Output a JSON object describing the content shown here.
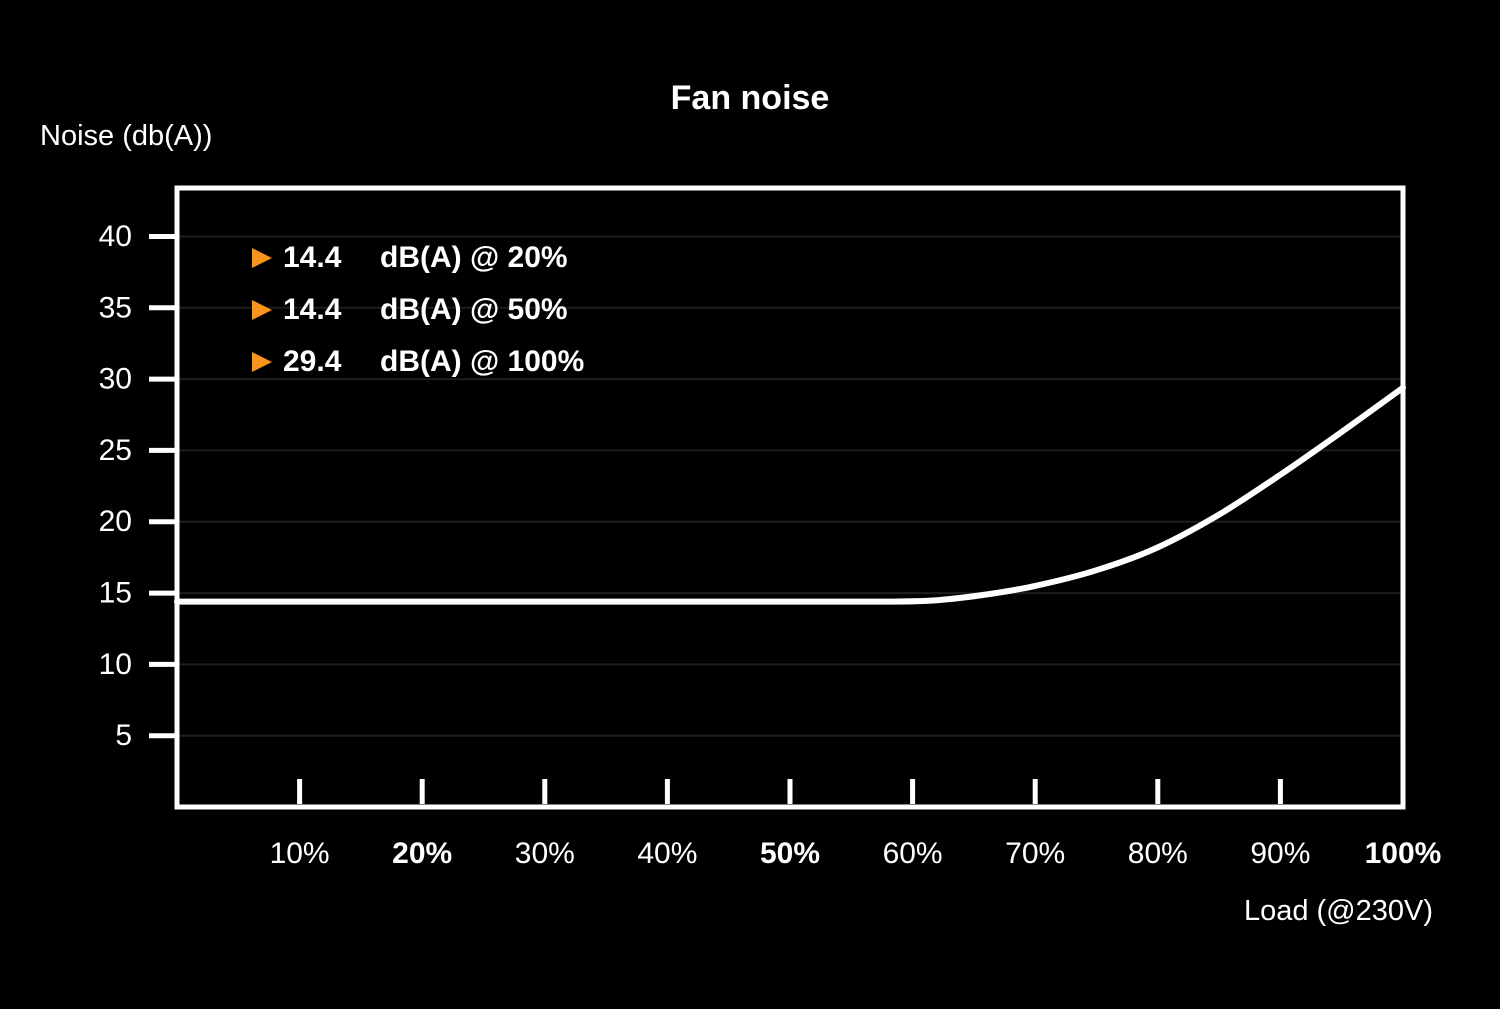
{
  "chart_data": {
    "type": "line",
    "title": "Fan noise",
    "ylabel": "Noise (db(A))",
    "xlabel": "Load (@230V)",
    "x_range": [
      0,
      100
    ],
    "y_range": [
      0,
      43.4
    ],
    "grid": "horizontal-only",
    "legend_position": "top-left-inside",
    "y_ticks": [
      {
        "value": 40,
        "label": "40"
      },
      {
        "value": 35,
        "label": "35"
      },
      {
        "value": 30,
        "label": "30"
      },
      {
        "value": 25,
        "label": "25"
      },
      {
        "value": 20,
        "label": "20"
      },
      {
        "value": 15,
        "label": "15"
      },
      {
        "value": 10,
        "label": "10"
      },
      {
        "value": 5,
        "label": "5"
      }
    ],
    "x_ticks": [
      {
        "value": 10,
        "label": "10%",
        "bold": false,
        "mark": true
      },
      {
        "value": 20,
        "label": "20%",
        "bold": true,
        "mark": true
      },
      {
        "value": 30,
        "label": "30%",
        "bold": false,
        "mark": true
      },
      {
        "value": 40,
        "label": "40%",
        "bold": false,
        "mark": true
      },
      {
        "value": 50,
        "label": "50%",
        "bold": true,
        "mark": true
      },
      {
        "value": 60,
        "label": "60%",
        "bold": false,
        "mark": true
      },
      {
        "value": 70,
        "label": "70%",
        "bold": false,
        "mark": true
      },
      {
        "value": 80,
        "label": "80%",
        "bold": false,
        "mark": true
      },
      {
        "value": 90,
        "label": "90%",
        "bold": false,
        "mark": true
      },
      {
        "value": 100,
        "label": "100%",
        "bold": true,
        "mark": false
      }
    ],
    "series": [
      {
        "name": "fan-noise-db",
        "color": "#ffffff",
        "points": [
          [
            0,
            14.4
          ],
          [
            10,
            14.4
          ],
          [
            20,
            14.4
          ],
          [
            30,
            14.4
          ],
          [
            40,
            14.4
          ],
          [
            50,
            14.4
          ],
          [
            58,
            14.4
          ],
          [
            62,
            14.5
          ],
          [
            66,
            14.9
          ],
          [
            70,
            15.5
          ],
          [
            75,
            16.6
          ],
          [
            80,
            18.2
          ],
          [
            85,
            20.5
          ],
          [
            90,
            23.3
          ],
          [
            95,
            26.3
          ],
          [
            100,
            29.4
          ]
        ]
      }
    ],
    "annotations": [
      {
        "value": "14.4",
        "label": "dB(A) @ 20%"
      },
      {
        "value": "14.4",
        "label": "dB(A) @ 50%"
      },
      {
        "value": "29.4",
        "label": "dB(A) @ 100%"
      }
    ],
    "colors": {
      "background": "#000000",
      "foreground": "#ffffff",
      "grid": "#1e1e1e",
      "marker_orange": "#f7941d"
    }
  }
}
